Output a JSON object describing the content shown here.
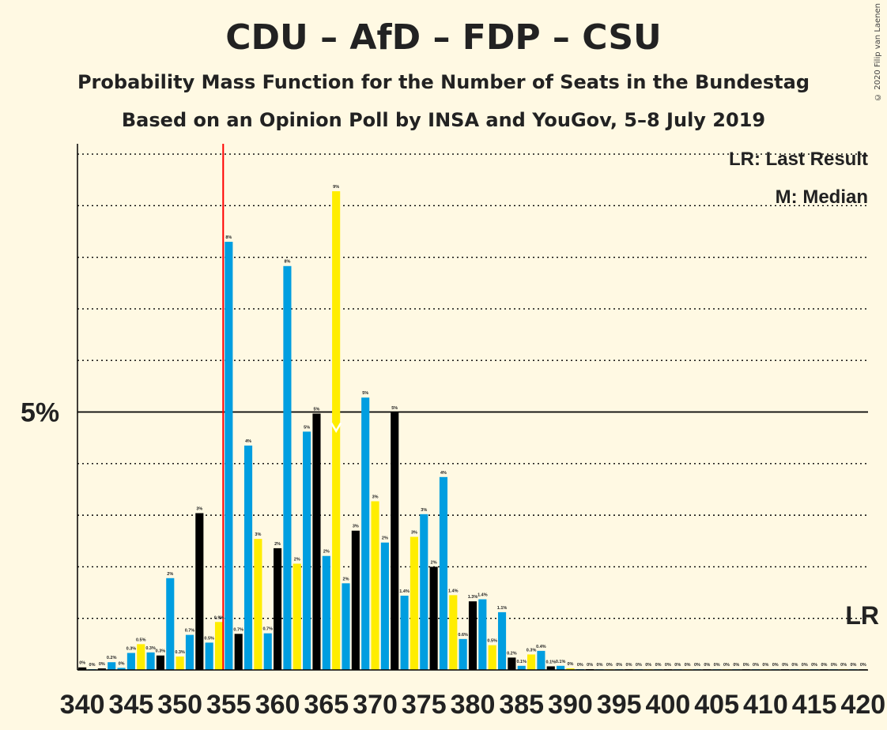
{
  "chart_data": {
    "type": "bar",
    "title": "CDU – AfD – FDP – CSU",
    "subtitle": "Probability Mass Function for the Number of Seats in the Bundestag",
    "subtitle2": "Based on an Opinion Poll by INSA and YouGov, 5–8 July 2019",
    "copyright": "© 2020 Filip van Laenen",
    "legend": {
      "lr": "LR: Last Result",
      "m": "M: Median",
      "lr_short": "LR",
      "m_short": "M",
      "placement": "top-right"
    },
    "y_tick_label": "5%",
    "y_major": 5,
    "ylim": [
      0,
      10.2
    ],
    "x_start": 340,
    "x_end": 420,
    "x_tick_step": 5,
    "last_result": 355,
    "median": 366,
    "colors": {
      "blue": "#009EE0",
      "black": "#000000",
      "yellow": "#FFED00",
      "lr_line": "#FF0000",
      "background": "#FFF9E3"
    },
    "values": [
      0.05,
      0.01,
      0.03,
      0.15,
      0.04,
      0.33,
      0.5,
      0.34,
      0.28,
      1.78,
      0.26,
      0.68,
      3.04,
      0.53,
      0.93,
      8.3,
      0.7,
      4.35,
      2.54,
      0.71,
      2.36,
      7.83,
      2.06,
      4.62,
      4.97,
      2.21,
      9.28,
      1.68,
      2.7,
      5.28,
      3.27,
      2.47,
      4.99,
      1.44,
      2.58,
      3.02,
      2.0,
      3.74,
      1.45,
      0.6,
      1.33,
      1.37,
      0.48,
      1.12,
      0.24,
      0.08,
      0.3,
      0.37,
      0.07,
      0.08,
      0.03,
      0.01,
      0.01,
      0,
      0,
      0,
      0,
      0,
      0,
      0,
      0,
      0,
      0,
      0,
      0,
      0,
      0,
      0,
      0,
      0,
      0,
      0,
      0,
      0,
      0,
      0,
      0,
      0,
      0,
      0,
      0
    ],
    "labels": [
      "0%",
      "0%",
      "0%",
      "0.2%",
      "0%",
      "0.3%",
      "0.5%",
      "0.3%",
      "0.3%",
      "2%",
      "0.3%",
      "0.7%",
      "3%",
      "0.5%",
      "0.9%",
      "8%",
      "0.7%",
      "4%",
      "3%",
      "0.7%",
      "2%",
      "8%",
      "2%",
      "5%",
      "5%",
      "2%",
      "9%",
      "2%",
      "3%",
      "5%",
      "3%",
      "2%",
      "5%",
      "1.4%",
      "3%",
      "3%",
      "2%",
      "4%",
      "1.4%",
      "0.6%",
      "1.3%",
      "1.4%",
      "0.5%",
      "1.1%",
      "0.2%",
      "0.1%",
      "0.3%",
      "0.4%",
      "0.1%",
      "0.1%",
      "0%",
      "0%",
      "0%",
      "0%",
      "0%",
      "0%",
      "0%",
      "0%",
      "0%",
      "0%",
      "0%",
      "0%",
      "0%",
      "0%",
      "0%",
      "0%",
      "0%",
      "0%",
      "0%",
      "0%",
      "0%",
      "0%",
      "0%",
      "0%",
      "0%",
      "0%",
      "0%",
      "0%",
      "0%",
      "0%",
      "0%"
    ],
    "bar_colors": [
      "black",
      "blue",
      "black",
      "blue",
      "blue",
      "blue",
      "yellow",
      "blue",
      "black",
      "blue",
      "yellow",
      "blue",
      "black",
      "blue",
      "yellow",
      "blue",
      "black",
      "blue",
      "yellow",
      "blue",
      "black",
      "blue",
      "yellow",
      "blue",
      "black",
      "blue",
      "yellow",
      "blue",
      "black",
      "blue",
      "yellow",
      "blue",
      "black",
      "blue",
      "yellow",
      "blue",
      "black",
      "blue",
      "yellow",
      "blue",
      "black",
      "blue",
      "yellow",
      "blue",
      "black",
      "blue",
      "yellow",
      "blue",
      "black",
      "blue",
      "yellow",
      "blue",
      "black",
      "blue",
      "yellow",
      "blue",
      "black",
      "blue",
      "yellow",
      "blue",
      "black",
      "blue",
      "yellow",
      "blue",
      "black",
      "blue",
      "yellow",
      "blue",
      "black",
      "blue",
      "yellow",
      "blue",
      "black",
      "blue",
      "yellow",
      "blue",
      "black",
      "blue",
      "yellow",
      "blue",
      "black"
    ]
  }
}
